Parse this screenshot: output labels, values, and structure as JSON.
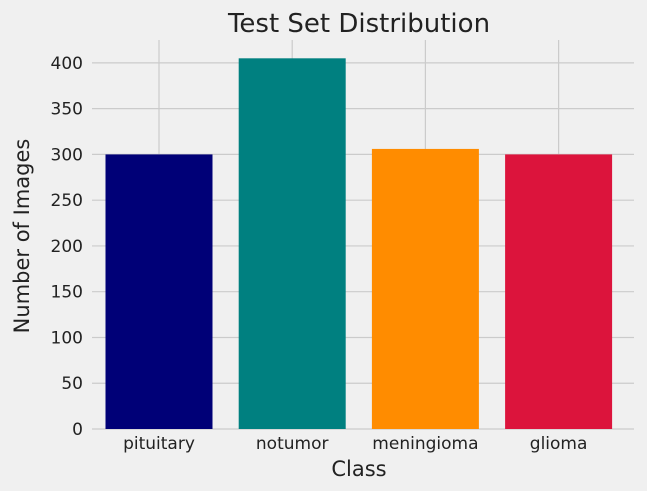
{
  "chart_data": {
    "type": "bar",
    "title": "Test Set Distribution",
    "xlabel": "Class",
    "ylabel": "Number of Images",
    "categories": [
      "pituitary",
      "notumor",
      "meningioma",
      "glioma"
    ],
    "values": [
      300,
      405,
      306,
      300
    ],
    "colors": [
      "#000077",
      "#008080",
      "#ff8c00",
      "#dc143c"
    ],
    "ylim": [
      0,
      425
    ],
    "yticks": [
      0,
      50,
      100,
      150,
      200,
      250,
      300,
      350,
      400
    ],
    "grid": true,
    "legend": "none"
  }
}
